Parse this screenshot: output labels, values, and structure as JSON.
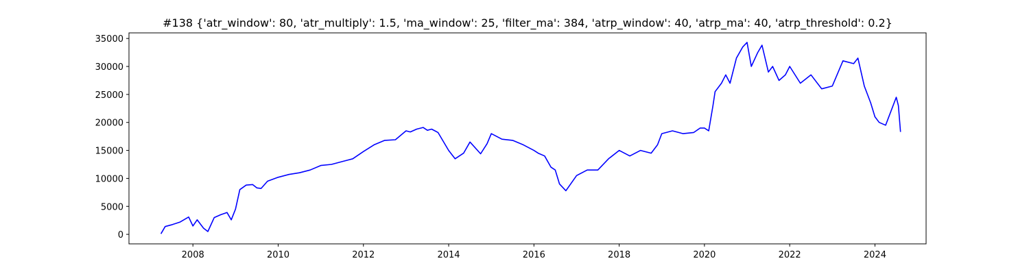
{
  "chart_data": {
    "type": "line",
    "title": "#138 {'atr_window': 80, 'atr_multiply': 1.5, 'ma_window': 25, 'filter_ma': 384, 'atrp_window': 40, 'atrp_ma': 40, 'atrp_threshold': 0.2}",
    "xlabel": "",
    "ylabel": "",
    "xlim": [
      2006.5,
      2025.2
    ],
    "ylim": [
      -1700,
      36000
    ],
    "x_ticks": [
      2008,
      2010,
      2012,
      2014,
      2016,
      2018,
      2020,
      2022,
      2024
    ],
    "x_tick_labels": [
      "2008",
      "2010",
      "2012",
      "2014",
      "2016",
      "2018",
      "2020",
      "2022",
      "2024"
    ],
    "y_ticks": [
      0,
      5000,
      10000,
      15000,
      20000,
      25000,
      30000,
      35000
    ],
    "y_tick_labels": [
      "0",
      "5000",
      "10000",
      "15000",
      "20000",
      "25000",
      "30000",
      "35000"
    ],
    "grid": false,
    "line_color": "#0000ff",
    "series": [
      {
        "x": [
          2007.25,
          2007.35,
          2007.5,
          2007.7,
          2007.9,
          2008.0,
          2008.1,
          2008.25,
          2008.35,
          2008.5,
          2008.65,
          2008.8,
          2008.9,
          2009.0,
          2009.1,
          2009.25,
          2009.4,
          2009.5,
          2009.6,
          2009.75,
          2010.0,
          2010.25,
          2010.5,
          2010.75,
          2011.0,
          2011.25,
          2011.5,
          2011.75,
          2012.0,
          2012.25,
          2012.5,
          2012.75,
          2013.0,
          2013.1,
          2013.25,
          2013.4,
          2013.5,
          2013.6,
          2013.75,
          2014.0,
          2014.15,
          2014.35,
          2014.5,
          2014.75,
          2014.9,
          2015.0,
          2015.25,
          2015.5,
          2015.75,
          2016.0,
          2016.1,
          2016.25,
          2016.4,
          2016.5,
          2016.6,
          2016.75,
          2017.0,
          2017.25,
          2017.5,
          2017.75,
          2018.0,
          2018.25,
          2018.5,
          2018.75,
          2018.9,
          2019.0,
          2019.25,
          2019.5,
          2019.75,
          2019.9,
          2020.0,
          2020.1,
          2020.2,
          2020.25,
          2020.4,
          2020.5,
          2020.6,
          2020.75,
          2020.9,
          2021.0,
          2021.1,
          2021.25,
          2021.35,
          2021.5,
          2021.6,
          2021.75,
          2021.9,
          2022.0,
          2022.25,
          2022.5,
          2022.75,
          2023.0,
          2023.25,
          2023.5,
          2023.6,
          2023.75,
          2023.9,
          2024.0,
          2024.1,
          2024.25,
          2024.4,
          2024.5,
          2024.55,
          2024.6
        ],
        "y": [
          100,
          1400,
          1700,
          2200,
          3100,
          1500,
          2600,
          1100,
          500,
          3000,
          3500,
          3900,
          2600,
          4500,
          8000,
          8800,
          8900,
          8300,
          8200,
          9500,
          10200,
          10700,
          11000,
          11500,
          12300,
          12500,
          13000,
          13500,
          14800,
          16000,
          16800,
          16900,
          18500,
          18300,
          18800,
          19100,
          18600,
          18800,
          18200,
          15000,
          13500,
          14500,
          16500,
          14400,
          16200,
          18000,
          17000,
          16800,
          16000,
          15000,
          14500,
          14000,
          12000,
          11500,
          9000,
          7800,
          10500,
          11500,
          11500,
          13500,
          15000,
          14000,
          15000,
          14500,
          16000,
          18000,
          18500,
          18000,
          18200,
          19000,
          19000,
          18500,
          23000,
          25500,
          27000,
          28500,
          27000,
          31500,
          33500,
          34300,
          30000,
          32500,
          33800,
          29000,
          30000,
          27500,
          28500,
          30000,
          27000,
          28500,
          26000,
          26500,
          31000,
          30500,
          31500,
          26500,
          23500,
          21000,
          20000,
          19500,
          22500,
          24500,
          23000,
          18300
        ]
      }
    ]
  }
}
